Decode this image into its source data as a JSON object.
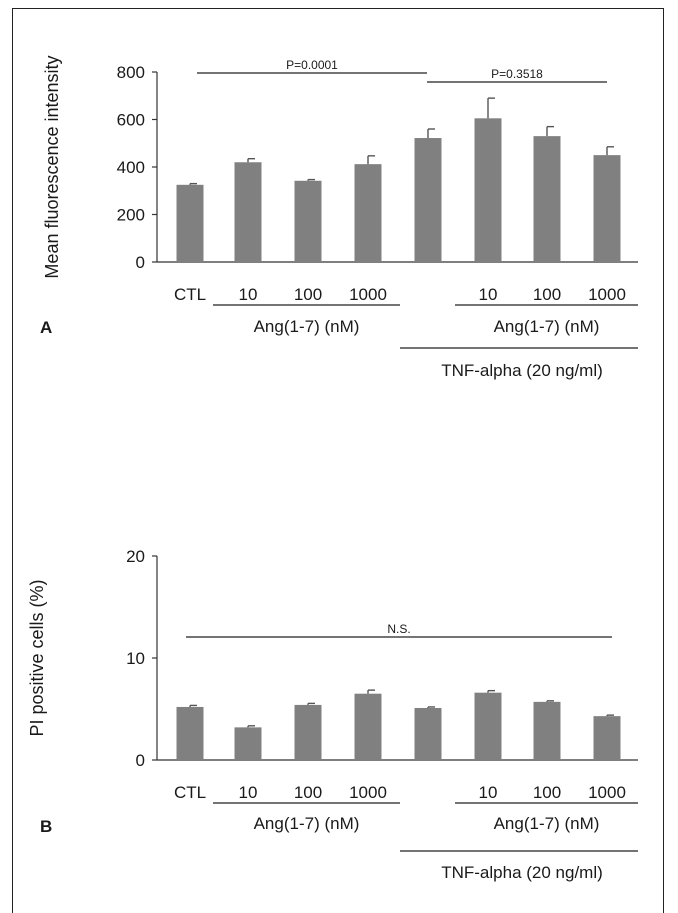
{
  "chart_data": [
    {
      "type": "bar",
      "panel_label": "A",
      "ylabel": "Mean fluorescence intensity",
      "ylim": [
        0,
        800
      ],
      "yticks": [
        0,
        200,
        400,
        600,
        800
      ],
      "categories": [
        "CTL",
        "10",
        "100",
        "1000",
        "",
        "10",
        "100",
        "1000"
      ],
      "values": [
        325,
        420,
        342,
        412,
        522,
        605,
        530,
        450
      ],
      "errors": [
        5,
        15,
        5,
        35,
        38,
        85,
        40,
        35
      ],
      "bar_color": "#808080",
      "group_labels": [
        "Ang(1-7) (nM)",
        "Ang(1-7) (nM)",
        "TNF-alpha (20 ng/ml)"
      ],
      "annotations": [
        {
          "text": "P=0.0001"
        },
        {
          "text": "P=0.3518"
        }
      ]
    },
    {
      "type": "bar",
      "panel_label": "B",
      "ylabel": "PI positive cells (%)",
      "ylim": [
        0,
        20
      ],
      "yticks": [
        0,
        10,
        20
      ],
      "categories": [
        "CTL",
        "10",
        "100",
        "1000",
        "",
        "10",
        "100",
        "1000"
      ],
      "values": [
        5.2,
        3.2,
        5.4,
        6.5,
        5.1,
        6.6,
        5.7,
        4.3
      ],
      "errors": [
        0.15,
        0.15,
        0.15,
        0.35,
        0.1,
        0.2,
        0.1,
        0.1
      ],
      "bar_color": "#808080",
      "group_labels": [
        "Ang(1-7) (nM)",
        "Ang(1-7) (nM)",
        "TNF-alpha (20 ng/ml)"
      ],
      "annotations": [
        {
          "text": "N.S."
        }
      ]
    }
  ]
}
